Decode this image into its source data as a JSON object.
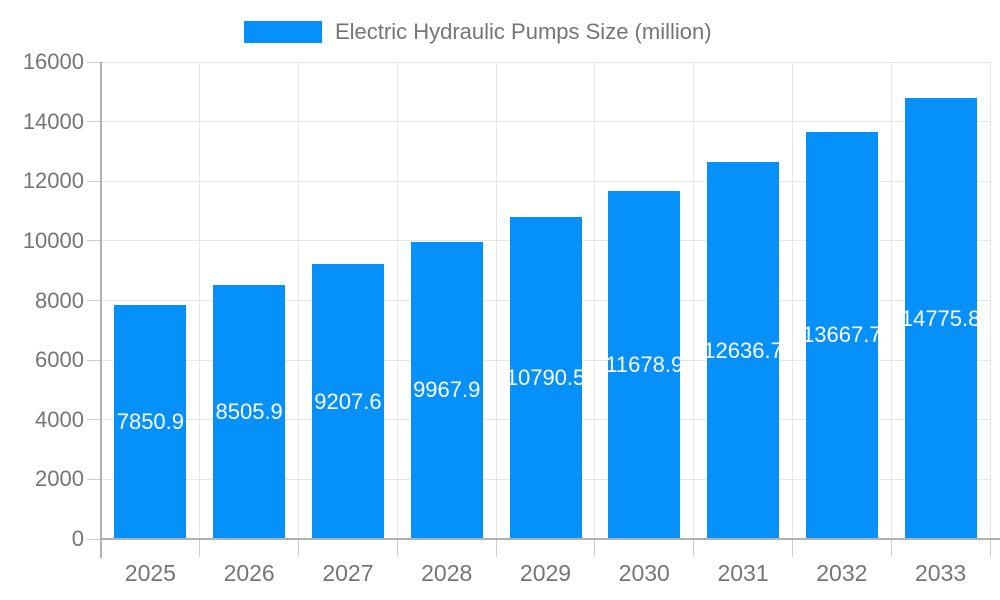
{
  "legend": {
    "position": "top"
  },
  "colors": {
    "bar": "#0691fa",
    "gridline": "#e6e6e6",
    "axis_line": "#b0b0b0",
    "tick_mark": "#cccccc",
    "axis_text": "#757575",
    "value_label_text": "#ffffff",
    "background": "#ffffff"
  },
  "chart_data": {
    "type": "bar",
    "title": "Electric Hydraulic Pumps Size (million)",
    "categories": [
      "2025",
      "2026",
      "2027",
      "2028",
      "2029",
      "2030",
      "2031",
      "2032",
      "2033"
    ],
    "series": [
      {
        "name": "Electric Hydraulic Pumps Size (million)",
        "values": [
          7850.9,
          8505.9,
          9207.6,
          9967.9,
          10790.5,
          11678.9,
          12636.7,
          13667.7,
          14775.8
        ]
      }
    ],
    "value_labels": [
      "7850.9",
      "8505.9",
      "9207.6",
      "9967.9",
      "10790.5",
      "11678.9",
      "12636.7",
      "13667.7",
      "14775.8"
    ],
    "xlabel": "",
    "ylabel": "",
    "ylim": [
      0,
      16000
    ],
    "yticks": [
      0,
      2000,
      4000,
      6000,
      8000,
      10000,
      12000,
      14000,
      16000
    ],
    "grid": true,
    "legend_position": "top"
  }
}
